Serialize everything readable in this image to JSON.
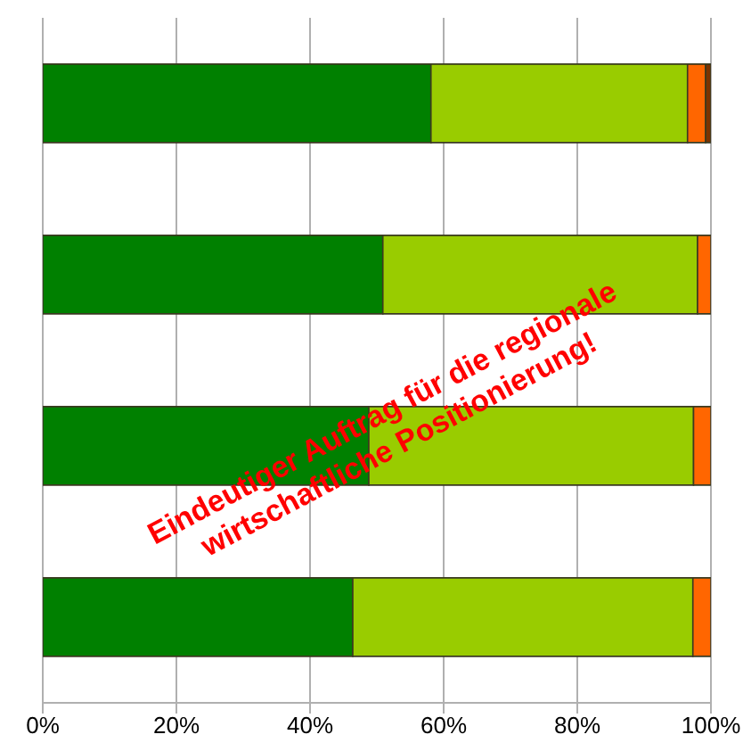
{
  "chart_data": {
    "type": "bar",
    "orientation": "horizontal",
    "stacked": true,
    "categories": [
      null,
      null,
      null,
      null
    ],
    "series": [
      {
        "color": "#008000",
        "values": [
          58.1,
          50.9,
          48.8,
          46.4
        ]
      },
      {
        "color": "#99cc00",
        "values": [
          38.4,
          47.1,
          48.6,
          50.9
        ]
      },
      {
        "color": "#ff6600",
        "values": [
          2.7,
          2.0,
          2.6,
          2.7
        ]
      },
      {
        "color": "#7a3300",
        "values": [
          0.8,
          0,
          0,
          0
        ]
      }
    ],
    "xlim": [
      0,
      100
    ],
    "xticks": [
      {
        "value": 0,
        "label": "0%"
      },
      {
        "value": 20,
        "label": "20%"
      },
      {
        "value": 40,
        "label": "40%"
      },
      {
        "value": 60,
        "label": "60%"
      },
      {
        "value": 80,
        "label": "80%"
      },
      {
        "value": 100,
        "label": "100%"
      }
    ],
    "grid": "x",
    "annotations": [
      "Eindeutiger Auftrag für die regionale",
      "wirtschaftliche Positionierung!"
    ]
  }
}
